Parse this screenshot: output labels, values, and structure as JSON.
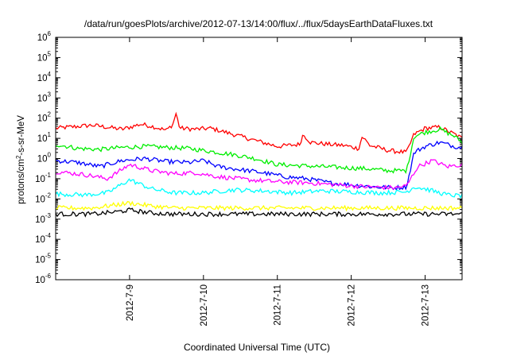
{
  "chart_data": {
    "type": "line",
    "title": "/data/run/goesPlots/archive/2012-07-13/14:00/flux/../flux/5daysEarthDataFluxes.txt",
    "xlabel": "Coordinated Universal Time (UTC)",
    "ylabel": {
      "base": "protons/cm",
      "sup": "2",
      "rest": "-s-sr-MeV"
    },
    "yscale": "log",
    "ylim_exp": [
      -6,
      6
    ],
    "y_tick_base": "10",
    "y_tick_exponents": [
      "-6",
      "-5",
      "-4",
      "-3",
      "-2",
      "-1",
      "0",
      "1",
      "2",
      "3",
      "4",
      "5",
      "6"
    ],
    "x_domain_days": [
      0,
      5.5
    ],
    "x_ticks": [
      {
        "label": "2012-7-9",
        "day": 1
      },
      {
        "label": "2012-7-10",
        "day": 2
      },
      {
        "label": "2012-7-11",
        "day": 3
      },
      {
        "label": "2012-7-12",
        "day": 4
      },
      {
        "label": "2012-7-13",
        "day": 5
      }
    ],
    "grid": false,
    "legend": "none",
    "series": [
      {
        "color": "#ff0000",
        "points": [
          [
            0,
            1.5
          ],
          [
            0.5,
            1.65
          ],
          [
            0.9,
            1.45
          ],
          [
            1.15,
            1.7
          ],
          [
            1.3,
            1.6
          ],
          [
            1.5,
            1.4
          ],
          [
            1.6,
            1.75
          ],
          [
            1.62,
            2.35
          ],
          [
            1.68,
            1.5
          ],
          [
            1.9,
            1.45
          ],
          [
            2.1,
            1.5
          ],
          [
            2.4,
            1.2
          ],
          [
            2.7,
            0.9
          ],
          [
            3.0,
            0.6
          ],
          [
            3.3,
            0.7
          ],
          [
            3.35,
            1.2
          ],
          [
            3.45,
            0.8
          ],
          [
            3.7,
            0.7
          ],
          [
            3.9,
            0.65
          ],
          [
            4.1,
            0.5
          ],
          [
            4.15,
            1.1
          ],
          [
            4.25,
            0.65
          ],
          [
            4.5,
            0.4
          ],
          [
            4.75,
            0.3
          ],
          [
            4.85,
            1.2
          ],
          [
            5.0,
            1.5
          ],
          [
            5.2,
            1.55
          ],
          [
            5.4,
            1.2
          ],
          [
            5.5,
            1.0
          ]
        ]
      },
      {
        "color": "#00ee00",
        "points": [
          [
            0,
            0.7
          ],
          [
            0.3,
            0.5
          ],
          [
            0.6,
            0.45
          ],
          [
            0.9,
            0.55
          ],
          [
            1.2,
            0.6
          ],
          [
            1.5,
            0.55
          ],
          [
            1.8,
            0.5
          ],
          [
            2.1,
            0.35
          ],
          [
            2.4,
            0.2
          ],
          [
            2.7,
            0.0
          ],
          [
            3.0,
            -0.3
          ],
          [
            3.3,
            -0.35
          ],
          [
            3.6,
            -0.4
          ],
          [
            3.9,
            -0.45
          ],
          [
            4.2,
            -0.5
          ],
          [
            4.5,
            -0.6
          ],
          [
            4.75,
            -0.6
          ],
          [
            4.85,
            1.1
          ],
          [
            5.0,
            1.3
          ],
          [
            5.2,
            1.45
          ],
          [
            5.4,
            1.1
          ],
          [
            5.5,
            0.8
          ]
        ]
      },
      {
        "color": "#0000ff",
        "points": [
          [
            0,
            -0.1
          ],
          [
            0.3,
            -0.2
          ],
          [
            0.6,
            -0.4
          ],
          [
            0.9,
            -0.1
          ],
          [
            1.2,
            0.0
          ],
          [
            1.5,
            -0.15
          ],
          [
            1.8,
            -0.2
          ],
          [
            2.0,
            -0.1
          ],
          [
            2.2,
            -0.4
          ],
          [
            2.5,
            -0.55
          ],
          [
            2.8,
            -0.7
          ],
          [
            3.1,
            -0.9
          ],
          [
            3.4,
            -1.0
          ],
          [
            3.7,
            -1.2
          ],
          [
            4.0,
            -1.3
          ],
          [
            4.3,
            -1.4
          ],
          [
            4.6,
            -1.45
          ],
          [
            4.75,
            -1.4
          ],
          [
            4.85,
            0.3
          ],
          [
            5.0,
            0.6
          ],
          [
            5.2,
            0.8
          ],
          [
            5.4,
            0.6
          ],
          [
            5.5,
            0.55
          ]
        ]
      },
      {
        "color": "#ff00ff",
        "points": [
          [
            0,
            -0.65
          ],
          [
            0.4,
            -0.8
          ],
          [
            0.7,
            -1.0
          ],
          [
            1.0,
            -0.3
          ],
          [
            1.3,
            -0.6
          ],
          [
            1.6,
            -0.75
          ],
          [
            1.9,
            -0.7
          ],
          [
            2.2,
            -0.9
          ],
          [
            2.6,
            -1.05
          ],
          [
            3.0,
            -1.15
          ],
          [
            3.4,
            -1.2
          ],
          [
            3.8,
            -1.3
          ],
          [
            4.2,
            -1.4
          ],
          [
            4.6,
            -1.45
          ],
          [
            4.75,
            -1.35
          ],
          [
            4.9,
            -0.4
          ],
          [
            5.1,
            -0.1
          ],
          [
            5.3,
            -0.4
          ],
          [
            5.5,
            -0.3
          ]
        ]
      },
      {
        "color": "#00ffff",
        "points": [
          [
            0,
            -1.75
          ],
          [
            0.4,
            -1.8
          ],
          [
            0.7,
            -1.7
          ],
          [
            1.0,
            -1.05
          ],
          [
            1.3,
            -1.5
          ],
          [
            1.6,
            -1.7
          ],
          [
            2.0,
            -1.7
          ],
          [
            2.4,
            -1.55
          ],
          [
            2.8,
            -1.6
          ],
          [
            3.2,
            -1.7
          ],
          [
            3.6,
            -1.6
          ],
          [
            4.0,
            -1.65
          ],
          [
            4.4,
            -1.7
          ],
          [
            4.75,
            -1.65
          ],
          [
            4.85,
            -1.4
          ],
          [
            5.0,
            -1.5
          ],
          [
            5.3,
            -1.8
          ],
          [
            5.5,
            -1.85
          ]
        ]
      },
      {
        "color": "#ffff00",
        "points": [
          [
            0,
            -2.45
          ],
          [
            0.5,
            -2.45
          ],
          [
            0.8,
            -2.3
          ],
          [
            1.0,
            -2.2
          ],
          [
            1.3,
            -2.35
          ],
          [
            1.6,
            -2.45
          ],
          [
            2.0,
            -2.45
          ],
          [
            2.5,
            -2.45
          ],
          [
            3.0,
            -2.45
          ],
          [
            3.5,
            -2.45
          ],
          [
            4.0,
            -2.45
          ],
          [
            4.5,
            -2.45
          ],
          [
            5.0,
            -2.45
          ],
          [
            5.5,
            -2.45
          ]
        ]
      },
      {
        "color": "#000000",
        "points": [
          [
            0,
            -2.75
          ],
          [
            0.5,
            -2.75
          ],
          [
            0.8,
            -2.65
          ],
          [
            1.0,
            -2.55
          ],
          [
            1.3,
            -2.7
          ],
          [
            1.6,
            -2.75
          ],
          [
            2.0,
            -2.75
          ],
          [
            2.5,
            -2.75
          ],
          [
            3.0,
            -2.75
          ],
          [
            3.5,
            -2.75
          ],
          [
            4.0,
            -2.75
          ],
          [
            4.5,
            -2.75
          ],
          [
            5.0,
            -2.75
          ],
          [
            5.5,
            -2.75
          ]
        ]
      }
    ]
  }
}
